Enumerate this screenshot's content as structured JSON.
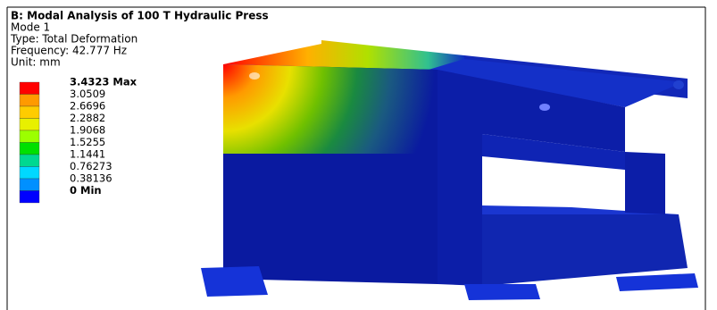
{
  "header": {
    "title": "B: Modal Analysis of 100 T Hydraulic Press",
    "mode": "Mode 1",
    "type": "Type: Total Deformation",
    "frequency": "Frequency: 42.777 Hz",
    "unit": "Unit: mm"
  },
  "legend": {
    "labels": [
      "3.4323 Max",
      "3.0509",
      "2.6696",
      "2.2882",
      "1.9068",
      "1.5255",
      "1.1441",
      "0.76273",
      "0.38136",
      "0 Min"
    ],
    "colors": [
      "#ff0000",
      "#ff9a00",
      "#ffcc00",
      "#e8f000",
      "#9cff00",
      "#00e000",
      "#00d890",
      "#00d8ff",
      "#0090ff",
      "#0000ff"
    ]
  }
}
